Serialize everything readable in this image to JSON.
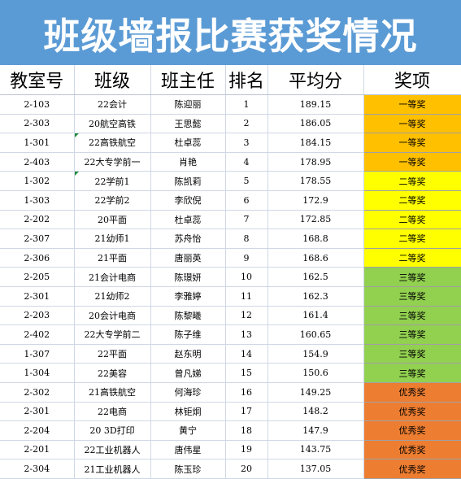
{
  "title": "班级墙报比赛获奖情况",
  "headers": [
    "教室号",
    "班级",
    "班主任",
    "排名",
    "平均分",
    "奖项"
  ],
  "colors": {
    "banner": "#5b9bd5",
    "award_first": "#ffc000",
    "award_second": "#ffff00",
    "award_third": "#92d050",
    "award_excellent": "#ed7d31"
  },
  "rows": [
    {
      "room": "2-103",
      "cls": "22会计",
      "teacher": "陈迎丽",
      "rank": "1",
      "score": "189.15",
      "award": "一等奖",
      "tier": "first"
    },
    {
      "room": "2-303",
      "cls": "20航空高铁",
      "teacher": "王思懿",
      "rank": "2",
      "score": "186.05",
      "award": "一等奖",
      "tier": "first"
    },
    {
      "room": "1-301",
      "cls": "22高铁航空",
      "teacher": "杜卓蕊",
      "rank": "3",
      "score": "184.15",
      "award": "一等奖",
      "tier": "first",
      "flag": true
    },
    {
      "room": "2-403",
      "cls": "22大专学前一",
      "teacher": "肖艳",
      "rank": "4",
      "score": "178.95",
      "award": "一等奖",
      "tier": "first"
    },
    {
      "room": "1-302",
      "cls": "22学前1",
      "teacher": "陈凯莉",
      "rank": "5",
      "score": "178.55",
      "award": "二等奖",
      "tier": "second",
      "flag": true
    },
    {
      "room": "1-303",
      "cls": "22学前2",
      "teacher": "李欣倪",
      "rank": "6",
      "score": "172.9",
      "award": "二等奖",
      "tier": "second"
    },
    {
      "room": "2-202",
      "cls": "20平面",
      "teacher": "杜卓蕊",
      "rank": "7",
      "score": "172.85",
      "award": "二等奖",
      "tier": "second"
    },
    {
      "room": "2-307",
      "cls": "21幼师1",
      "teacher": "苏舟怡",
      "rank": "8",
      "score": "168.8",
      "award": "二等奖",
      "tier": "second"
    },
    {
      "room": "2-306",
      "cls": "21平面",
      "teacher": "唐丽英",
      "rank": "9",
      "score": "168.6",
      "award": "二等奖",
      "tier": "second"
    },
    {
      "room": "2-205",
      "cls": "21会计电商",
      "teacher": "陈璟妍",
      "rank": "10",
      "score": "162.5",
      "award": "三等奖",
      "tier": "third"
    },
    {
      "room": "2-301",
      "cls": "21幼师2",
      "teacher": "李雅婷",
      "rank": "11",
      "score": "162.3",
      "award": "三等奖",
      "tier": "third"
    },
    {
      "room": "2-203",
      "cls": "20会计电商",
      "teacher": "陈黎曦",
      "rank": "12",
      "score": "161.4",
      "award": "三等奖",
      "tier": "third"
    },
    {
      "room": "2-402",
      "cls": "22大专学前二",
      "teacher": "陈子维",
      "rank": "13",
      "score": "160.65",
      "award": "三等奖",
      "tier": "third"
    },
    {
      "room": "1-307",
      "cls": "22平面",
      "teacher": "赵东明",
      "rank": "14",
      "score": "154.9",
      "award": "三等奖",
      "tier": "third"
    },
    {
      "room": "1-304",
      "cls": "22美容",
      "teacher": "曾凡娣",
      "rank": "15",
      "score": "150.6",
      "award": "三等奖",
      "tier": "third"
    },
    {
      "room": "2-302",
      "cls": "21高铁航空",
      "teacher": "何海珍",
      "rank": "16",
      "score": "149.25",
      "award": "优秀奖",
      "tier": "excellent"
    },
    {
      "room": "2-301",
      "cls": "22电商",
      "teacher": "林钜炯",
      "rank": "17",
      "score": "148.2",
      "award": "优秀奖",
      "tier": "excellent"
    },
    {
      "room": "2-204",
      "cls": "20 3D打印",
      "teacher": "黄宁",
      "rank": "18",
      "score": "147.9",
      "award": "优秀奖",
      "tier": "excellent"
    },
    {
      "room": "2-201",
      "cls": "22工业机器人",
      "teacher": "唐伟星",
      "rank": "19",
      "score": "143.75",
      "award": "优秀奖",
      "tier": "excellent"
    },
    {
      "room": "2-304",
      "cls": "21工业机器人",
      "teacher": "陈玉珍",
      "rank": "20",
      "score": "137.05",
      "award": "优秀奖",
      "tier": "excellent"
    }
  ]
}
